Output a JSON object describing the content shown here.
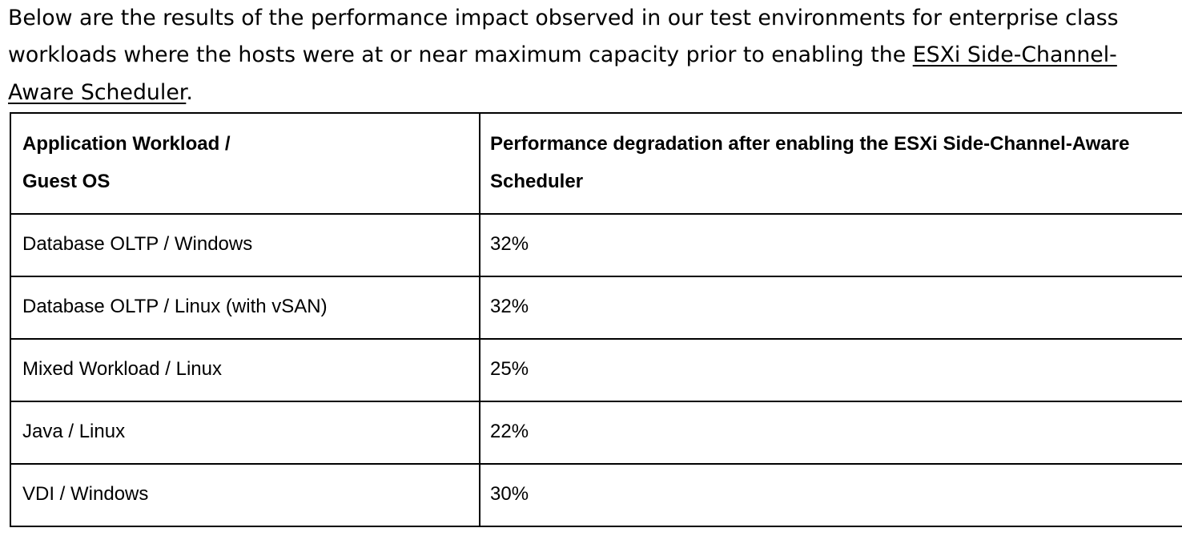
{
  "document": {
    "intro": {
      "prefix": "Below are the results of the performance impact observed in our test environments for enterprise class workloads where the hosts were at or near maximum capacity prior to enabling the ",
      "link_text": "ESXi Side-Channel-Aware Scheduler",
      "suffix": "."
    },
    "table": {
      "header": {
        "col1_lines": [
          "Application Workload /",
          "Guest OS"
        ],
        "col2": "Performance degradation after enabling the ESXi Side-Channel-Aware Scheduler"
      },
      "rows": [
        {
          "workload": "Database OLTP / Windows",
          "degradation": "32%"
        },
        {
          "workload": "Database OLTP / Linux (with vSAN)",
          "degradation": "32%"
        },
        {
          "workload": "Mixed Workload / Linux",
          "degradation": "25%"
        },
        {
          "workload": "Java / Linux",
          "degradation": "22%"
        },
        {
          "workload": "VDI / Windows",
          "degradation": "30%"
        }
      ]
    },
    "colors": {
      "text": "#000000",
      "link": "#000000",
      "border": "#000000",
      "background": "#ffffff"
    }
  }
}
